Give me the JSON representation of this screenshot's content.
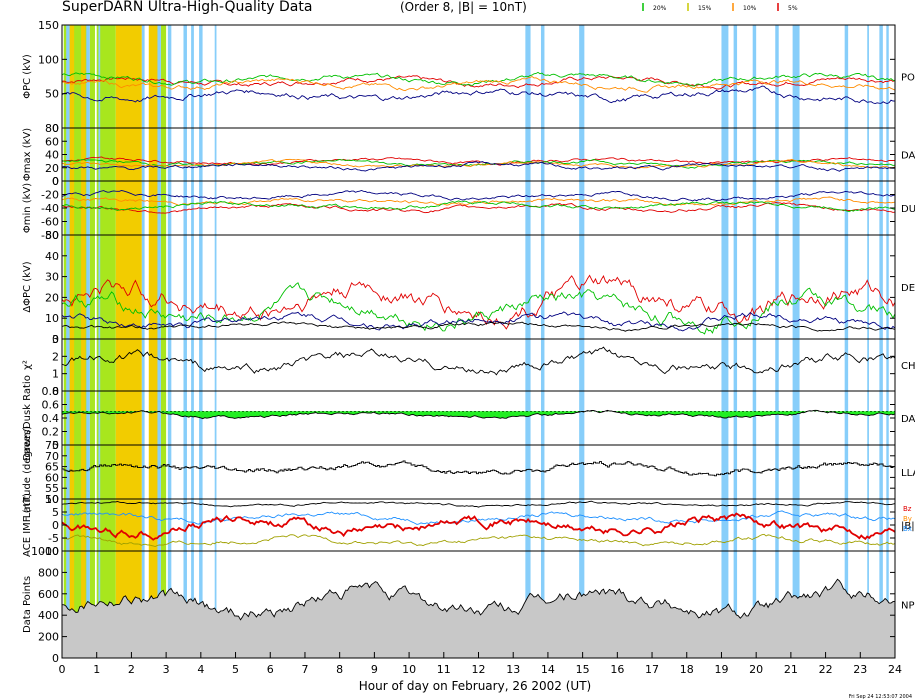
{
  "header": {
    "title": "SuperDARN Ultra-High-Quality Data",
    "subtitle": "(Order 8, |B| = 10nT)",
    "legend": [
      {
        "label": "20%",
        "color": "#00c000"
      },
      {
        "label": "15%",
        "color": "#c8c800"
      },
      {
        "label": "10%",
        "color": "#ff8c00"
      },
      {
        "label": "5%",
        "color": "#e00000"
      }
    ],
    "footer_stamp": "Fri Sep 24 12:53:07 2004"
  },
  "colors": {
    "red": "#e00000",
    "green": "#00c000",
    "orange": "#ff8c00",
    "navy": "#000080",
    "band_blue": "#87cefa",
    "band_green": "#a8e61e",
    "band_yellow": "#f2cc00",
    "fill_green": "#22ee22",
    "fill_gray": "#c8c8c8",
    "imf_cyan": "#1e90ff",
    "imf_olive": "#a0a000"
  },
  "chart_data": {
    "type": "line",
    "xlabel": "Hour of day on February, 26 2002 (UT)",
    "xlim": [
      0,
      24
    ],
    "xticks": [
      0,
      1,
      2,
      3,
      4,
      5,
      6,
      7,
      8,
      9,
      10,
      11,
      12,
      13,
      14,
      15,
      16,
      17,
      18,
      19,
      20,
      21,
      22,
      23,
      24
    ],
    "bands": [
      {
        "color": "band_green",
        "ranges": [
          [
            0.05,
            0.75
          ],
          [
            0.8,
            0.95
          ],
          [
            1.0,
            1.55
          ],
          [
            2.85,
            3.0
          ]
        ]
      },
      {
        "color": "band_yellow",
        "ranges": [
          [
            0.12,
            0.35
          ],
          [
            0.55,
            0.68
          ],
          [
            1.55,
            2.3
          ],
          [
            2.5,
            2.8
          ]
        ]
      },
      {
        "color": "band_blue",
        "ranges": [
          [
            0.12,
            0.22
          ],
          [
            0.7,
            0.8
          ],
          [
            1.05,
            1.1
          ],
          [
            2.3,
            2.38
          ],
          [
            2.75,
            2.85
          ],
          [
            3.05,
            3.15
          ],
          [
            3.5,
            3.6
          ],
          [
            3.72,
            3.8
          ],
          [
            3.95,
            4.05
          ],
          [
            4.4,
            4.45
          ],
          [
            13.35,
            13.5
          ],
          [
            13.8,
            13.9
          ],
          [
            14.9,
            15.05
          ],
          [
            19.0,
            19.2
          ],
          [
            19.35,
            19.45
          ],
          [
            19.9,
            20.0
          ],
          [
            20.55,
            20.65
          ],
          [
            21.05,
            21.25
          ],
          [
            22.55,
            22.65
          ],
          [
            23.2,
            23.25
          ],
          [
            23.55,
            23.65
          ],
          [
            23.75,
            23.82
          ]
        ]
      }
    ],
    "panels": [
      {
        "ylabel": "ΦPC (kV)",
        "ylim": [
          0,
          150
        ],
        "yticks": [
          0,
          50,
          100,
          150
        ],
        "right_label": "PO",
        "series": [
          {
            "color": "red",
            "base": 68,
            "amp": 8
          },
          {
            "color": "green",
            "base": 72,
            "amp": 8
          },
          {
            "color": "orange",
            "base": 64,
            "amp": 8
          },
          {
            "color": "navy",
            "base": 48,
            "amp": 10
          }
        ]
      },
      {
        "ylabel": "Φmax (kV)",
        "ylim": [
          0,
          80
        ],
        "yticks": [
          0,
          20,
          40,
          60,
          80
        ],
        "right_label": "DAY",
        "series": [
          {
            "color": "red",
            "base": 30,
            "amp": 5
          },
          {
            "color": "green",
            "base": 27,
            "amp": 5
          },
          {
            "color": "orange",
            "base": 25,
            "amp": 5
          },
          {
            "color": "navy",
            "base": 22,
            "amp": 6
          }
        ]
      },
      {
        "ylabel": "Φmin (kV)",
        "ylim": [
          -80,
          0
        ],
        "yticks": [
          -80,
          -60,
          -40,
          -20,
          0
        ],
        "right_label": "DU",
        "series": [
          {
            "color": "navy",
            "base": -22,
            "amp": 6
          },
          {
            "color": "orange",
            "base": -30,
            "amp": 6
          },
          {
            "color": "red",
            "base": -40,
            "amp": 6
          },
          {
            "color": "green",
            "base": -36,
            "amp": 6
          }
        ]
      },
      {
        "ylabel": "ΔΦPC (kV)",
        "ylim": [
          0,
          50
        ],
        "yticks": [
          0,
          10,
          20,
          30,
          40,
          50
        ],
        "right_label": "DE",
        "series": [
          {
            "color": "red",
            "base": 18,
            "amp": 10
          },
          {
            "color": "green",
            "base": 14,
            "amp": 8
          },
          {
            "color": "navy",
            "base": 9,
            "amp": 4
          },
          {
            "color": "black",
            "base": 6,
            "amp": 2
          }
        ]
      },
      {
        "ylabel": "χ²",
        "ylim": [
          0,
          3
        ],
        "yticks": [
          0,
          1,
          2,
          3
        ],
        "right_label": "CH",
        "series": [
          {
            "color": "black",
            "base": 1.6,
            "amp": 0.6
          }
        ]
      },
      {
        "ylabel": "Dawn/Dusk Ratio",
        "ylim": [
          0,
          0.8
        ],
        "yticks": [
          0,
          0.2,
          0.4,
          0.6,
          0.8
        ],
        "right_label": "DAY",
        "ref_line": 0.5,
        "series": [
          {
            "color": "black",
            "base": 0.45,
            "amp": 0.05,
            "fill": "fill_green"
          }
        ]
      },
      {
        "ylabel": "Latitude (degrees)",
        "ylim": [
          50,
          75
        ],
        "yticks": [
          50,
          55,
          60,
          65,
          70,
          75
        ],
        "right_label": "LLA",
        "step": true,
        "series": [
          {
            "color": "black",
            "base": 64,
            "amp": 3
          }
        ]
      },
      {
        "ylabel": "ACE IMF (nT)",
        "ylim": [
          -10,
          10
        ],
        "yticks": [
          -10,
          -5,
          0,
          5,
          10
        ],
        "right_label": "|B|",
        "components": [
          "Bz",
          "By",
          "Bx"
        ],
        "series": [
          {
            "color": "black",
            "base": 8,
            "amp": 1
          },
          {
            "color": "imf_cyan",
            "base": 3,
            "amp": 2
          },
          {
            "color": "imf_olive",
            "base": -6,
            "amp": 2
          },
          {
            "color": "red",
            "base": 0,
            "amp": 4,
            "thick": true
          }
        ]
      },
      {
        "ylabel": "Data Points",
        "ylim": [
          0,
          1000
        ],
        "yticks": [
          0,
          200,
          400,
          600,
          800,
          1000
        ],
        "right_label": "NP",
        "series": [
          {
            "color": "black",
            "base": 520,
            "amp": 150,
            "fill": "fill_gray"
          }
        ]
      }
    ]
  }
}
